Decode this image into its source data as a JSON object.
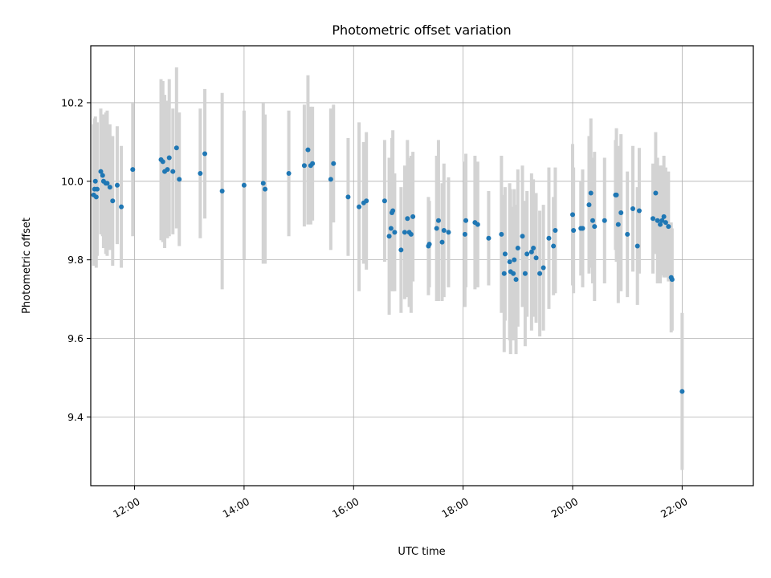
{
  "chart_data": {
    "type": "scatter",
    "title": "Photometric offset variation",
    "xlabel": "UTC time",
    "ylabel": "Photometric offset",
    "xlim": [
      "11:12",
      "23:18"
    ],
    "ylim": [
      9.225,
      10.345
    ],
    "x_ticks": [
      "12:00",
      "14:00",
      "16:00",
      "18:00",
      "20:00",
      "22:00"
    ],
    "y_ticks": [
      9.4,
      9.6,
      9.8,
      10.0,
      10.2
    ],
    "grid": true,
    "legend": "none",
    "colors": {
      "point": "#1f77b4",
      "errorbar": "#d3d3d3",
      "grid": "#b0b0b0"
    },
    "points": [
      {
        "x": "11:15:15",
        "y": 9.965,
        "err": 0.18
      },
      {
        "x": "11:16:10",
        "y": 9.98,
        "err": 0.18
      },
      {
        "x": "11:17:05",
        "y": 10.0,
        "err": 0.165
      },
      {
        "x": "11:18:00",
        "y": 9.96,
        "err": 0.18
      },
      {
        "x": "11:19:00",
        "y": 9.98,
        "err": 0.17
      },
      {
        "x": "11:23:00",
        "y": 10.025,
        "err": 0.16
      },
      {
        "x": "11:25:00",
        "y": 10.015,
        "err": 0.155
      },
      {
        "x": "11:26:00",
        "y": 10.0,
        "err": 0.17
      },
      {
        "x": "11:28:30",
        "y": 9.995,
        "err": 0.18
      },
      {
        "x": "11:30:00",
        "y": 9.995,
        "err": 0.185
      },
      {
        "x": "11:33:00",
        "y": 9.985,
        "err": 0.16
      },
      {
        "x": "11:36:00",
        "y": 9.95,
        "err": 0.165
      },
      {
        "x": "11:41:00",
        "y": 9.99,
        "err": 0.15
      },
      {
        "x": "11:45:30",
        "y": 9.935,
        "err": 0.155
      },
      {
        "x": "11:58:00",
        "y": 10.03,
        "err": 0.17
      },
      {
        "x": "12:29:00",
        "y": 10.055,
        "err": 0.205
      },
      {
        "x": "12:31:00",
        "y": 10.05,
        "err": 0.205
      },
      {
        "x": "12:33:00",
        "y": 10.025,
        "err": 0.195
      },
      {
        "x": "12:36:00",
        "y": 10.03,
        "err": 0.175
      },
      {
        "x": "12:38:00",
        "y": 10.06,
        "err": 0.2
      },
      {
        "x": "12:42:00",
        "y": 10.025,
        "err": 0.16
      },
      {
        "x": "12:46:00",
        "y": 10.085,
        "err": 0.205
      },
      {
        "x": "12:49:00",
        "y": 10.005,
        "err": 0.17
      },
      {
        "x": "13:12:00",
        "y": 10.02,
        "err": 0.165
      },
      {
        "x": "13:17:00",
        "y": 10.07,
        "err": 0.165
      },
      {
        "x": "13:36:00",
        "y": 9.975,
        "err": 0.25
      },
      {
        "x": "14:00:00",
        "y": 9.99,
        "err": 0.19
      },
      {
        "x": "14:21:00",
        "y": 9.995,
        "err": 0.205
      },
      {
        "x": "14:23:00",
        "y": 9.98,
        "err": 0.19
      },
      {
        "x": "14:49:00",
        "y": 10.02,
        "err": 0.16
      },
      {
        "x": "15:06:00",
        "y": 10.04,
        "err": 0.155
      },
      {
        "x": "15:10:00",
        "y": 10.08,
        "err": 0.19
      },
      {
        "x": "15:13:00",
        "y": 10.04,
        "err": 0.15
      },
      {
        "x": "15:15:00",
        "y": 10.045,
        "err": 0.145
      },
      {
        "x": "15:35:00",
        "y": 10.005,
        "err": 0.18
      },
      {
        "x": "15:38:00",
        "y": 10.045,
        "err": 0.15
      },
      {
        "x": "15:54:00",
        "y": 9.96,
        "err": 0.15
      },
      {
        "x": "16:06:00",
        "y": 9.935,
        "err": 0.215
      },
      {
        "x": "16:11:00",
        "y": 9.945,
        "err": 0.155
      },
      {
        "x": "16:14:00",
        "y": 9.95,
        "err": 0.175
      },
      {
        "x": "16:34:00",
        "y": 9.95,
        "err": 0.155
      },
      {
        "x": "16:39:00",
        "y": 9.86,
        "err": 0.2
      },
      {
        "x": "16:41:00",
        "y": 9.88,
        "err": 0.16
      },
      {
        "x": "16:42:00",
        "y": 9.92,
        "err": 0.19
      },
      {
        "x": "16:43:00",
        "y": 9.925,
        "err": 0.205
      },
      {
        "x": "16:45:00",
        "y": 9.87,
        "err": 0.15
      },
      {
        "x": "16:52:00",
        "y": 9.825,
        "err": 0.16
      },
      {
        "x": "16:56:00",
        "y": 9.87,
        "err": 0.17
      },
      {
        "x": "16:59:00",
        "y": 9.905,
        "err": 0.2
      },
      {
        "x": "17:01:00",
        "y": 9.87,
        "err": 0.19
      },
      {
        "x": "17:03:00",
        "y": 9.865,
        "err": 0.2
      },
      {
        "x": "17:05:00",
        "y": 9.91,
        "err": 0.165
      },
      {
        "x": "17:22:00",
        "y": 9.835,
        "err": 0.125
      },
      {
        "x": "17:23:00",
        "y": 9.84,
        "err": 0.11
      },
      {
        "x": "17:31:00",
        "y": 9.88,
        "err": 0.185
      },
      {
        "x": "17:33:00",
        "y": 9.9,
        "err": 0.205
      },
      {
        "x": "17:37:00",
        "y": 9.845,
        "err": 0.15
      },
      {
        "x": "17:39:00",
        "y": 9.875,
        "err": 0.17
      },
      {
        "x": "17:44:00",
        "y": 9.87,
        "err": 0.14
      },
      {
        "x": "18:02:00",
        "y": 9.865,
        "err": 0.185
      },
      {
        "x": "18:03:00",
        "y": 9.9,
        "err": 0.17
      },
      {
        "x": "18:13:00",
        "y": 9.895,
        "err": 0.17
      },
      {
        "x": "18:16:00",
        "y": 9.89,
        "err": 0.16
      },
      {
        "x": "18:28:00",
        "y": 9.855,
        "err": 0.12
      },
      {
        "x": "18:42:00",
        "y": 9.865,
        "err": 0.2
      },
      {
        "x": "18:45:00",
        "y": 9.765,
        "err": 0.2
      },
      {
        "x": "18:46:00",
        "y": 9.815,
        "err": 0.17
      },
      {
        "x": "18:51:00",
        "y": 9.795,
        "err": 0.2
      },
      {
        "x": "18:52:00",
        "y": 9.77,
        "err": 0.21
      },
      {
        "x": "18:55:00",
        "y": 9.765,
        "err": 0.17
      },
      {
        "x": "18:56:00",
        "y": 9.8,
        "err": 0.18
      },
      {
        "x": "18:58:00",
        "y": 9.75,
        "err": 0.19
      },
      {
        "x": "19:00:00",
        "y": 9.83,
        "err": 0.2
      },
      {
        "x": "19:05:00",
        "y": 9.86,
        "err": 0.18
      },
      {
        "x": "19:08:00",
        "y": 9.765,
        "err": 0.185
      },
      {
        "x": "19:10:00",
        "y": 9.815,
        "err": 0.16
      },
      {
        "x": "19:15:00",
        "y": 9.82,
        "err": 0.2
      },
      {
        "x": "19:17:00",
        "y": 9.83,
        "err": 0.175
      },
      {
        "x": "19:20:00",
        "y": 9.805,
        "err": 0.165
      },
      {
        "x": "19:24:00",
        "y": 9.765,
        "err": 0.16
      },
      {
        "x": "19:28:00",
        "y": 9.78,
        "err": 0.16
      },
      {
        "x": "19:34:00",
        "y": 9.855,
        "err": 0.18
      },
      {
        "x": "19:39:00",
        "y": 9.835,
        "err": 0.125
      },
      {
        "x": "19:41:00",
        "y": 9.875,
        "err": 0.16
      },
      {
        "x": "20:00:00",
        "y": 9.915,
        "err": 0.18
      },
      {
        "x": "20:01:00",
        "y": 9.875,
        "err": 0.16
      },
      {
        "x": "20:09:00",
        "y": 9.88,
        "err": 0.12
      },
      {
        "x": "20:11:00",
        "y": 9.88,
        "err": 0.15
      },
      {
        "x": "20:18:00",
        "y": 9.94,
        "err": 0.175
      },
      {
        "x": "20:20:00",
        "y": 9.97,
        "err": 0.19
      },
      {
        "x": "20:22:00",
        "y": 9.9,
        "err": 0.16
      },
      {
        "x": "20:24:00",
        "y": 9.885,
        "err": 0.19
      },
      {
        "x": "20:35:00",
        "y": 9.9,
        "err": 0.16
      },
      {
        "x": "20:47:00",
        "y": 9.965,
        "err": 0.14
      },
      {
        "x": "20:48:00",
        "y": 9.965,
        "err": 0.17
      },
      {
        "x": "20:50:00",
        "y": 9.89,
        "err": 0.2
      },
      {
        "x": "20:53:00",
        "y": 9.92,
        "err": 0.2
      },
      {
        "x": "21:00:00",
        "y": 9.865,
        "err": 0.16
      },
      {
        "x": "21:06:00",
        "y": 9.93,
        "err": 0.16
      },
      {
        "x": "21:11:00",
        "y": 9.835,
        "err": 0.15
      },
      {
        "x": "21:13:00",
        "y": 9.925,
        "err": 0.16
      },
      {
        "x": "21:28:00",
        "y": 9.905,
        "err": 0.14
      },
      {
        "x": "21:31:00",
        "y": 9.97,
        "err": 0.155
      },
      {
        "x": "21:33:00",
        "y": 9.9,
        "err": 0.16
      },
      {
        "x": "21:36:00",
        "y": 9.89,
        "err": 0.15
      },
      {
        "x": "21:38:00",
        "y": 9.9,
        "err": 0.14
      },
      {
        "x": "21:40:00",
        "y": 9.91,
        "err": 0.155
      },
      {
        "x": "21:42:00",
        "y": 9.895,
        "err": 0.14
      },
      {
        "x": "21:45:00",
        "y": 9.885,
        "err": 0.14
      },
      {
        "x": "21:48:00",
        "y": 9.755,
        "err": 0.14
      },
      {
        "x": "21:49:00",
        "y": 9.75,
        "err": 0.13
      },
      {
        "x": "22:00:00",
        "y": 9.465,
        "err": 0.2
      }
    ]
  }
}
